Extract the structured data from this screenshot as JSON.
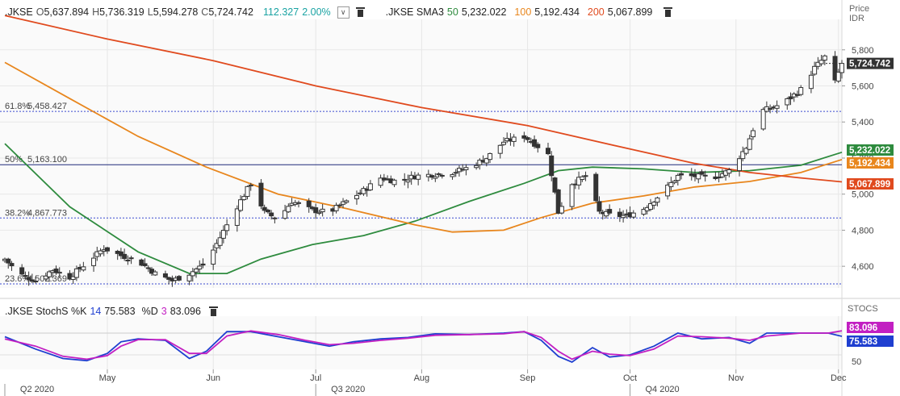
{
  "header_main": {
    "symbol": ".JKSE",
    "open_label": "O",
    "open": "5,637.894",
    "high_label": "H",
    "high": "5,736.319",
    "low_label": "L",
    "low": "5,594.278",
    "close_label": "C",
    "close": "5,724.742",
    "change": "112.327",
    "change_pct": "2.00%",
    "sma_label": ".JKSE SMA3",
    "sma50_label": "50",
    "sma50": "5,232.022",
    "sma100_label": "100",
    "sma100": "5,192.434",
    "sma200_label": "200",
    "sma200": "5,067.899"
  },
  "header_stoch": {
    "label": ".JKSE StochS %K",
    "k_period": "14",
    "k_value": "75.583",
    "d_label": "%D",
    "d_period": "3",
    "d_value": "83.096"
  },
  "axis_titles": {
    "price_title": "Price",
    "price_unit": "IDR",
    "stoch_title": "STOCS"
  },
  "colors": {
    "sma50": "#2e8b3e",
    "sma100": "#e8861d",
    "sma200": "#e04a1e",
    "stoch_k": "#1f3fd0",
    "stoch_d": "#c21fc2",
    "candle": "#333333",
    "last_price_bg": "#333333",
    "teal": "#1aa3a3"
  },
  "chart_data": [
    {
      "type": "candlestick",
      "title": ".JKSE",
      "y_axis_label": "Price IDR",
      "ylim": [
        4480,
        5960
      ],
      "y_ticks": [
        4600,
        4800,
        5000,
        5200,
        5400,
        5600,
        5800
      ],
      "y_tick_labels": [
        "4,600",
        "4,800",
        "5,000",
        "5,200",
        "5,400",
        "5,600",
        "5,800"
      ],
      "x_range": [
        "2020-04-01",
        "2020-12-02"
      ],
      "month_labels": [
        {
          "date": "2020-05-01",
          "label": "May"
        },
        {
          "date": "2020-06-01",
          "label": "Jun"
        },
        {
          "date": "2020-07-01",
          "label": "Jul"
        },
        {
          "date": "2020-08-01",
          "label": "Aug"
        },
        {
          "date": "2020-09-01",
          "label": "Sep"
        },
        {
          "date": "2020-10-01",
          "label": "Oct"
        },
        {
          "date": "2020-11-01",
          "label": "Nov"
        },
        {
          "date": "2020-12-01",
          "label": "Dec"
        }
      ],
      "quarter_labels": [
        {
          "date": "2020-04-01",
          "label": "Q2 2020"
        },
        {
          "date": "2020-07-01",
          "label": "Q3 2020"
        },
        {
          "date": "2020-10-01",
          "label": "Q4 2020"
        }
      ],
      "fib_levels": [
        {
          "label": "61.8%",
          "value_label": "5,458.427",
          "value": 5458.427
        },
        {
          "label": "50%",
          "value_label": "5,163.100",
          "value": 5163.1
        },
        {
          "label": "38.2%",
          "value_label": "4,867.773",
          "value": 4867.773
        },
        {
          "label": "23.6%",
          "value_label": "4,502.369",
          "value": 4502.369
        }
      ],
      "last_price_label": "5,724.742",
      "last_price": 5724.742,
      "sma_value_labels": [
        {
          "series": "sma50",
          "label": "5,232.022",
          "value": 5232.022
        },
        {
          "series": "sma100",
          "label": "5,192.434",
          "value": 5192.434
        },
        {
          "series": "sma200",
          "label": "5,067.899",
          "value": 5067.899
        }
      ],
      "close_series": [
        [
          "2020-04-01",
          4640
        ],
        [
          "2020-04-05",
          4560
        ],
        [
          "2020-04-10",
          4520
        ],
        [
          "2020-04-15",
          4580
        ],
        [
          "2020-04-20",
          4540
        ],
        [
          "2020-04-25",
          4620
        ],
        [
          "2020-04-30",
          4700
        ],
        [
          "2020-05-05",
          4660
        ],
        [
          "2020-05-10",
          4630
        ],
        [
          "2020-05-15",
          4560
        ],
        [
          "2020-05-20",
          4520
        ],
        [
          "2020-05-25",
          4560
        ],
        [
          "2020-05-30",
          4620
        ],
        [
          "2020-06-03",
          4760
        ],
        [
          "2020-06-07",
          4900
        ],
        [
          "2020-06-12",
          5060
        ],
        [
          "2020-06-16",
          4900
        ],
        [
          "2020-06-20",
          4860
        ],
        [
          "2020-06-24",
          4960
        ],
        [
          "2020-06-30",
          4910
        ],
        [
          "2020-07-05",
          4900
        ],
        [
          "2020-07-10",
          4960
        ],
        [
          "2020-07-15",
          5020
        ],
        [
          "2020-07-20",
          5090
        ],
        [
          "2020-07-25",
          5070
        ],
        [
          "2020-07-30",
          5100
        ],
        [
          "2020-08-05",
          5110
        ],
        [
          "2020-08-10",
          5120
        ],
        [
          "2020-08-15",
          5150
        ],
        [
          "2020-08-20",
          5200
        ],
        [
          "2020-08-25",
          5290
        ],
        [
          "2020-08-31",
          5320
        ],
        [
          "2020-09-03",
          5280
        ],
        [
          "2020-09-07",
          5220
        ],
        [
          "2020-09-10",
          4900
        ],
        [
          "2020-09-14",
          5060
        ],
        [
          "2020-09-18",
          5100
        ],
        [
          "2020-09-22",
          4900
        ],
        [
          "2020-09-26",
          4880
        ],
        [
          "2020-09-30",
          4880
        ],
        [
          "2020-10-05",
          4920
        ],
        [
          "2020-10-10",
          5000
        ],
        [
          "2020-10-15",
          5100
        ],
        [
          "2020-10-20",
          5100
        ],
        [
          "2020-10-25",
          5090
        ],
        [
          "2020-10-30",
          5130
        ],
        [
          "2020-11-04",
          5260
        ],
        [
          "2020-11-08",
          5460
        ],
        [
          "2020-11-12",
          5480
        ],
        [
          "2020-11-16",
          5520
        ],
        [
          "2020-11-20",
          5580
        ],
        [
          "2020-11-24",
          5700
        ],
        [
          "2020-11-28",
          5780
        ],
        [
          "2020-11-30",
          5620
        ],
        [
          "2020-12-02",
          5725
        ]
      ],
      "series": [
        {
          "name": "50",
          "key": "sma50",
          "points": [
            [
              "2020-04-01",
              5280
            ],
            [
              "2020-04-20",
              4930
            ],
            [
              "2020-05-10",
              4680
            ],
            [
              "2020-05-25",
              4560
            ],
            [
              "2020-06-05",
              4560
            ],
            [
              "2020-06-15",
              4640
            ],
            [
              "2020-06-30",
              4720
            ],
            [
              "2020-07-15",
              4770
            ],
            [
              "2020-07-30",
              4850
            ],
            [
              "2020-08-15",
              4960
            ],
            [
              "2020-08-31",
              5060
            ],
            [
              "2020-09-10",
              5130
            ],
            [
              "2020-09-20",
              5150
            ],
            [
              "2020-10-05",
              5140
            ],
            [
              "2020-10-20",
              5120
            ],
            [
              "2020-11-05",
              5130
            ],
            [
              "2020-11-20",
              5160
            ],
            [
              "2020-12-02",
              5232
            ]
          ]
        },
        {
          "name": "100",
          "key": "sma100",
          "points": [
            [
              "2020-04-01",
              5730
            ],
            [
              "2020-04-20",
              5530
            ],
            [
              "2020-05-10",
              5320
            ],
            [
              "2020-05-30",
              5150
            ],
            [
              "2020-06-20",
              5000
            ],
            [
              "2020-07-10",
              4920
            ],
            [
              "2020-07-30",
              4830
            ],
            [
              "2020-08-10",
              4790
            ],
            [
              "2020-08-25",
              4800
            ],
            [
              "2020-09-05",
              4870
            ],
            [
              "2020-09-20",
              4950
            ],
            [
              "2020-10-05",
              4990
            ],
            [
              "2020-10-20",
              5040
            ],
            [
              "2020-11-05",
              5070
            ],
            [
              "2020-11-20",
              5120
            ],
            [
              "2020-12-02",
              5192
            ]
          ]
        },
        {
          "name": "200",
          "key": "sma200",
          "points": [
            [
              "2020-04-01",
              5990
            ],
            [
              "2020-05-01",
              5860
            ],
            [
              "2020-06-01",
              5740
            ],
            [
              "2020-07-01",
              5600
            ],
            [
              "2020-08-01",
              5480
            ],
            [
              "2020-09-01",
              5380
            ],
            [
              "2020-10-01",
              5250
            ],
            [
              "2020-10-20",
              5170
            ],
            [
              "2020-11-05",
              5120
            ],
            [
              "2020-11-20",
              5090
            ],
            [
              "2020-12-02",
              5068
            ]
          ]
        }
      ]
    },
    {
      "type": "line",
      "title": ".JKSE StochS %K 14 %D 3",
      "y_axis_label": "STOCS",
      "ylim": [
        30,
        100
      ],
      "y_ticks": [
        50
      ],
      "y_tick_labels": [
        "50"
      ],
      "value_labels": [
        {
          "series": "stoch_d",
          "label": "83.096",
          "value": 83.096
        },
        {
          "series": "stoch_k",
          "label": "75.583",
          "value": 75.583
        }
      ],
      "series": [
        {
          "name": "%K",
          "key": "stoch_k",
          "points": [
            [
              "2020-04-01",
              75
            ],
            [
              "2020-04-10",
              58
            ],
            [
              "2020-04-18",
              45
            ],
            [
              "2020-04-25",
              42
            ],
            [
              "2020-05-01",
              52
            ],
            [
              "2020-05-05",
              68
            ],
            [
              "2020-05-10",
              72
            ],
            [
              "2020-05-18",
              70
            ],
            [
              "2020-05-25",
              45
            ],
            [
              "2020-05-30",
              55
            ],
            [
              "2020-06-05",
              82
            ],
            [
              "2020-06-12",
              82
            ],
            [
              "2020-06-20",
              75
            ],
            [
              "2020-06-28",
              68
            ],
            [
              "2020-07-05",
              62
            ],
            [
              "2020-07-12",
              68
            ],
            [
              "2020-07-20",
              72
            ],
            [
              "2020-07-28",
              74
            ],
            [
              "2020-08-05",
              79
            ],
            [
              "2020-08-15",
              78
            ],
            [
              "2020-08-25",
              80
            ],
            [
              "2020-08-31",
              82
            ],
            [
              "2020-09-05",
              70
            ],
            [
              "2020-09-10",
              48
            ],
            [
              "2020-09-14",
              40
            ],
            [
              "2020-09-20",
              60
            ],
            [
              "2020-09-25",
              47
            ],
            [
              "2020-10-01",
              50
            ],
            [
              "2020-10-08",
              62
            ],
            [
              "2020-10-15",
              80
            ],
            [
              "2020-10-22",
              72
            ],
            [
              "2020-10-30",
              74
            ],
            [
              "2020-11-05",
              66
            ],
            [
              "2020-11-10",
              80
            ],
            [
              "2020-11-20",
              80
            ],
            [
              "2020-11-28",
              80
            ],
            [
              "2020-12-02",
              75.583
            ]
          ]
        },
        {
          "name": "%D",
          "key": "stoch_d",
          "points": [
            [
              "2020-04-01",
              72
            ],
            [
              "2020-04-10",
              62
            ],
            [
              "2020-04-18",
              48
            ],
            [
              "2020-04-25",
              44
            ],
            [
              "2020-05-01",
              49
            ],
            [
              "2020-05-05",
              62
            ],
            [
              "2020-05-10",
              71
            ],
            [
              "2020-05-18",
              71
            ],
            [
              "2020-05-25",
              52
            ],
            [
              "2020-05-30",
              52
            ],
            [
              "2020-06-05",
              76
            ],
            [
              "2020-06-12",
              83
            ],
            [
              "2020-06-20",
              78
            ],
            [
              "2020-06-28",
              70
            ],
            [
              "2020-07-05",
              64
            ],
            [
              "2020-07-12",
              66
            ],
            [
              "2020-07-20",
              70
            ],
            [
              "2020-07-28",
              73
            ],
            [
              "2020-08-05",
              77
            ],
            [
              "2020-08-15",
              78
            ],
            [
              "2020-08-25",
              79
            ],
            [
              "2020-08-31",
              82
            ],
            [
              "2020-09-05",
              74
            ],
            [
              "2020-09-10",
              55
            ],
            [
              "2020-09-14",
              44
            ],
            [
              "2020-09-20",
              55
            ],
            [
              "2020-09-25",
              51
            ],
            [
              "2020-10-01",
              49
            ],
            [
              "2020-10-08",
              58
            ],
            [
              "2020-10-15",
              76
            ],
            [
              "2020-10-22",
              75
            ],
            [
              "2020-10-30",
              73
            ],
            [
              "2020-11-05",
              70
            ],
            [
              "2020-11-10",
              76
            ],
            [
              "2020-11-20",
              80
            ],
            [
              "2020-11-28",
              80
            ],
            [
              "2020-12-02",
              83.096
            ]
          ]
        }
      ]
    }
  ]
}
